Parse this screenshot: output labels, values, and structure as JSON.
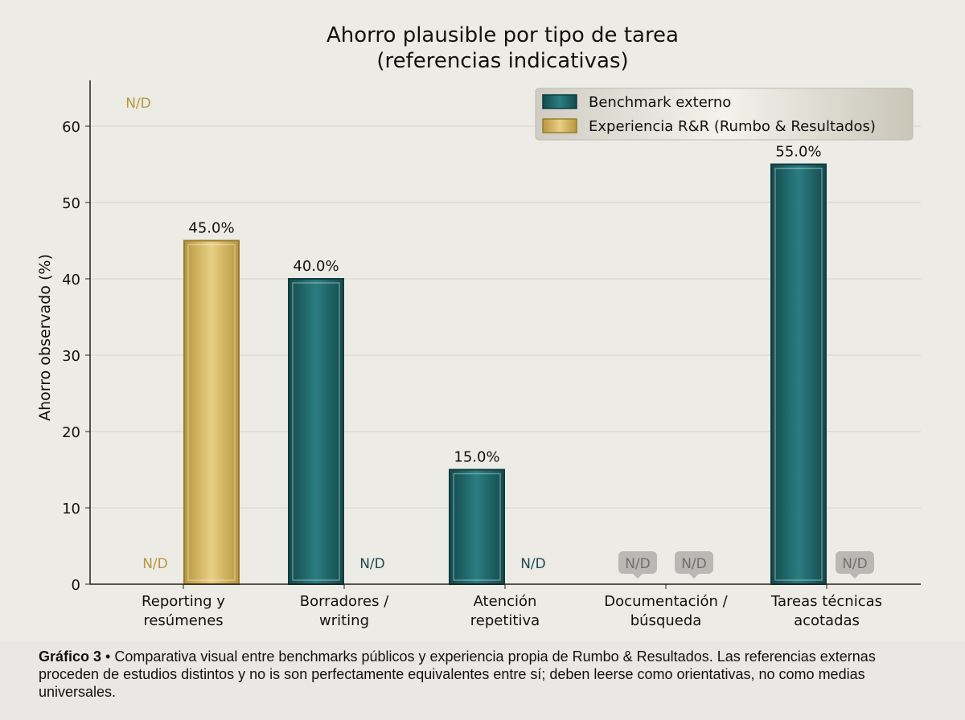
{
  "chart_data": {
    "type": "bar",
    "title": [
      "Ahorro plausible por tipo de tarea",
      "(referencias indicativas)"
    ],
    "xlabel": "",
    "ylabel": "Ahorro observado (%)",
    "ylim": [
      0,
      66
    ],
    "yticks": [
      0,
      10,
      20,
      30,
      40,
      50,
      60
    ],
    "grid": "horizontal",
    "legend_position": "top-right",
    "categories": [
      [
        "Reporting y",
        "resúmenes"
      ],
      [
        "Borradores /",
        "writing"
      ],
      [
        "Atención",
        "repetitiva"
      ],
      [
        "Documentación /",
        "búsqueda"
      ],
      [
        "Tareas técnicas",
        "acotadas"
      ]
    ],
    "series": [
      {
        "name": "Benchmark externo",
        "color": "#1f6468",
        "values": [
          null,
          40,
          15,
          null,
          55
        ],
        "labels": [
          "N/D",
          "40.0%",
          "15.0%",
          "N/D",
          "55.0%"
        ],
        "missing_label_color": [
          "#b8963a",
          null,
          null,
          "#8a8a8a",
          null
        ]
      },
      {
        "name": "Experiencia R&R (Rumbo & Resultados)",
        "color": "#d9b75e",
        "values": [
          45,
          null,
          null,
          null,
          null
        ],
        "labels": [
          "45.0%",
          "N/D",
          "N/D",
          "N/D",
          "N/D"
        ],
        "missing_label_color": [
          null,
          "#1f4a4c",
          "#1f4a4c",
          "#8a8a8a",
          "#8a8a8a"
        ]
      }
    ],
    "annotations": [
      {
        "text": "N/D",
        "color": "#b8963a"
      }
    ]
  },
  "caption": {
    "bold": "Gráfico 3",
    "text": " • Comparativa visual entre benchmarks públicos y experiencia propia de Rumbo & Resultados. Las referencias externas proceden de estudios distintos y no is son perfectamente equivalentes entre sí; deben leerse como orientativas, no como medias universales."
  }
}
